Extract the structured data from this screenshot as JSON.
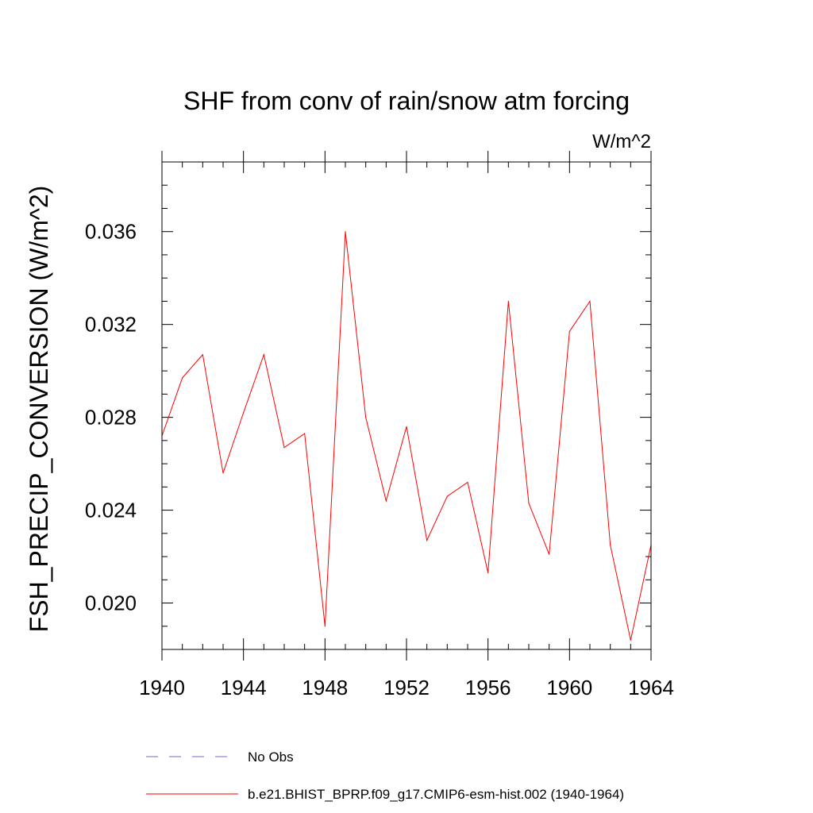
{
  "chart_data": {
    "type": "line",
    "title": "SHF from conv of rain/snow atm forcing",
    "units_label": "W/m^2",
    "ylabel": "FSH_PRECIP_CONVERSION  (W/m^2)",
    "xlabel": "",
    "xlim": [
      1940,
      1964
    ],
    "ylim": [
      0.018,
      0.039
    ],
    "x_ticks": [
      1940,
      1944,
      1948,
      1952,
      1956,
      1960,
      1964
    ],
    "x_tick_labels": [
      "1940",
      "1944",
      "1948",
      "1952",
      "1956",
      "1960",
      "1964"
    ],
    "y_ticks": [
      0.02,
      0.024,
      0.028,
      0.032,
      0.036
    ],
    "y_tick_labels": [
      "0.020",
      "0.024",
      "0.028",
      "0.032",
      "0.036"
    ],
    "grid": false,
    "legend_position": "bottom",
    "series": [
      {
        "name": "b.e21.BHIST_BPRP.f09_g17.CMIP6-esm-hist.002 (1940-1964)",
        "color": "#ff0000",
        "x": [
          1940,
          1941,
          1942,
          1943,
          1944,
          1945,
          1946,
          1947,
          1948,
          1949,
          1950,
          1951,
          1952,
          1953,
          1954,
          1955,
          1956,
          1957,
          1958,
          1959,
          1960,
          1961,
          1962,
          1963,
          1964
        ],
        "values": [
          0.0272,
          0.0297,
          0.0307,
          0.0256,
          0.0282,
          0.0307,
          0.0267,
          0.0273,
          0.019,
          0.036,
          0.028,
          0.0244,
          0.0276,
          0.0227,
          0.0246,
          0.0252,
          0.0213,
          0.033,
          0.0243,
          0.0221,
          0.0317,
          0.033,
          0.0225,
          0.0184,
          0.0225
        ]
      }
    ],
    "legend": [
      {
        "label": "No Obs",
        "color": "#6a6ad0",
        "style": "dashed"
      },
      {
        "label": "b.e21.BHIST_BPRP.f09_g17.CMIP6-esm-hist.002 (1940-1964)",
        "color": "#ff0000",
        "style": "solid"
      }
    ]
  }
}
